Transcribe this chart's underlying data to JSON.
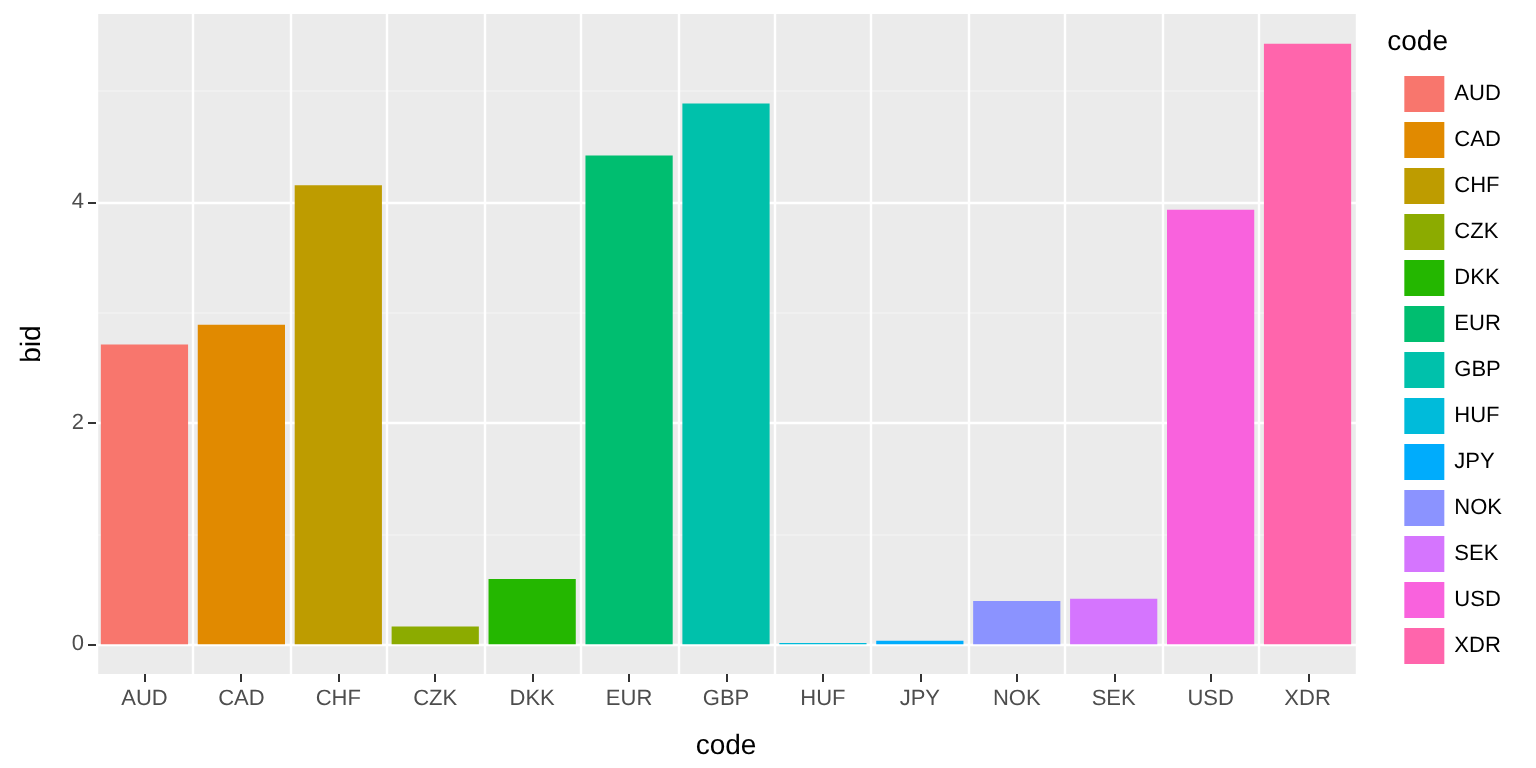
{
  "chart_data": {
    "type": "bar",
    "xlabel": "code",
    "ylabel": "bid",
    "legend_title": "code",
    "categories": [
      "AUD",
      "CAD",
      "CHF",
      "CZK",
      "DKK",
      "EUR",
      "GBP",
      "HUF",
      "JPY",
      "NOK",
      "SEK",
      "USD",
      "XDR"
    ],
    "series": [
      {
        "name": "AUD",
        "color": "#f8766d",
        "values": [
          2.71,
          null,
          null,
          null,
          null,
          null,
          null,
          null,
          null,
          null,
          null,
          null,
          null
        ]
      },
      {
        "name": "CAD",
        "color": "#e18a00",
        "values": [
          null,
          2.89,
          null,
          null,
          null,
          null,
          null,
          null,
          null,
          null,
          null,
          null,
          null
        ]
      },
      {
        "name": "CHF",
        "color": "#be9c00",
        "values": [
          null,
          null,
          4.15,
          null,
          null,
          null,
          null,
          null,
          null,
          null,
          null,
          null,
          null
        ]
      },
      {
        "name": "CZK",
        "color": "#8cab00",
        "values": [
          null,
          null,
          null,
          0.16,
          null,
          null,
          null,
          null,
          null,
          null,
          null,
          null,
          null
        ]
      },
      {
        "name": "DKK",
        "color": "#24b700",
        "values": [
          null,
          null,
          null,
          null,
          0.59,
          null,
          null,
          null,
          null,
          null,
          null,
          null,
          null
        ]
      },
      {
        "name": "EUR",
        "color": "#00be70",
        "values": [
          null,
          null,
          null,
          null,
          null,
          4.42,
          null,
          null,
          null,
          null,
          null,
          null,
          null
        ]
      },
      {
        "name": "GBP",
        "color": "#00c1ab",
        "values": [
          null,
          null,
          null,
          null,
          null,
          null,
          4.89,
          null,
          null,
          null,
          null,
          null,
          null
        ]
      },
      {
        "name": "HUF",
        "color": "#00bbda",
        "values": [
          null,
          null,
          null,
          null,
          null,
          null,
          null,
          0.01,
          null,
          null,
          null,
          null,
          null
        ]
      },
      {
        "name": "JPY",
        "color": "#00acfc",
        "values": [
          null,
          null,
          null,
          null,
          null,
          null,
          null,
          null,
          0.03,
          null,
          null,
          null,
          null
        ]
      },
      {
        "name": "NOK",
        "color": "#8b93ff",
        "values": [
          null,
          null,
          null,
          null,
          null,
          null,
          null,
          null,
          null,
          0.39,
          null,
          null,
          null
        ]
      },
      {
        "name": "SEK",
        "color": "#d575fe",
        "values": [
          null,
          null,
          null,
          null,
          null,
          null,
          null,
          null,
          null,
          null,
          0.41,
          null,
          null
        ]
      },
      {
        "name": "USD",
        "color": "#f962dd",
        "values": [
          null,
          null,
          null,
          null,
          null,
          null,
          null,
          null,
          null,
          null,
          null,
          3.93,
          null
        ]
      },
      {
        "name": "XDR",
        "color": "#ff65ac",
        "values": [
          null,
          null,
          null,
          null,
          null,
          null,
          null,
          null,
          null,
          null,
          null,
          null,
          5.43
        ]
      }
    ],
    "ylim": [
      -0.27,
      5.7
    ],
    "yticks": [
      0,
      2,
      4
    ],
    "grid": true,
    "legend": "right"
  }
}
